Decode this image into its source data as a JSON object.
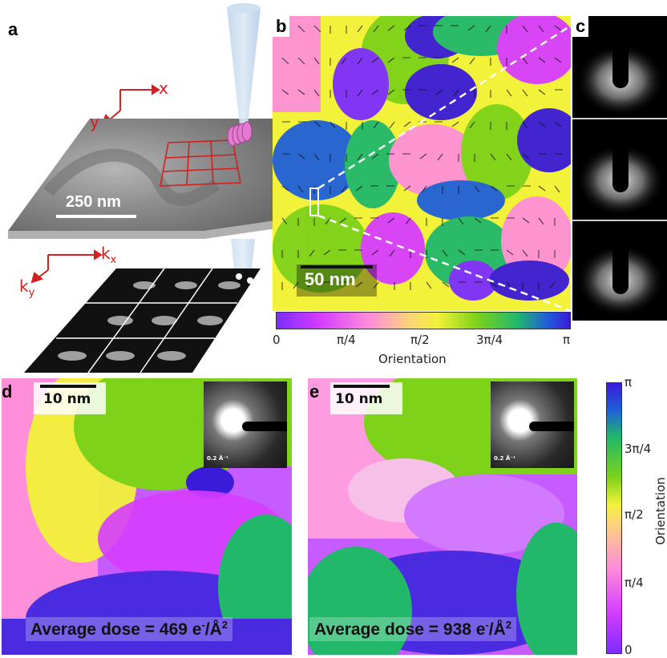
{
  "panels": {
    "a": {
      "label": "a",
      "axis_x": "x",
      "axis_y": "y",
      "scale_bar": "250 nm",
      "k_axis_x": "k",
      "k_axis_x_sub": "x",
      "k_axis_y": "k",
      "k_axis_y_sub": "y"
    },
    "b": {
      "label": "b",
      "scale_bar": "50 nm",
      "colorbar_title": "Orientation",
      "colorbar_ticks": [
        "0",
        "π/4",
        "π/2",
        "3π/4",
        "π"
      ]
    },
    "c": {
      "label": "c"
    },
    "d": {
      "label": "d",
      "scale_bar": "10 nm",
      "inset_scale": "0.2 Å⁻¹",
      "dose_prefix": "Average dose = 469 e",
      "dose_sup1": "-",
      "dose_mid": "/Å",
      "dose_sup2": "2"
    },
    "e": {
      "label": "e",
      "scale_bar": "10 nm",
      "inset_scale": "0.2 Å⁻¹",
      "dose_prefix": "Average dose = 938 e",
      "dose_sup1": "-",
      "dose_mid": "/Å",
      "dose_sup2": "2"
    },
    "vertical_colorbar": {
      "title": "Orientation",
      "ticks": [
        "π",
        "3π/4",
        "π/2",
        "π/4",
        "0"
      ]
    }
  },
  "colors": {
    "orientation_map": [
      "#7b2cff",
      "#d63cff",
      "#ff8fd8",
      "#ffd37a",
      "#f2f23a",
      "#7fd21a",
      "#21b86a",
      "#1f5fd8",
      "#3a1bd8"
    ],
    "probe_red": "#d0201f",
    "sem_gray": "#8a8a8a"
  }
}
